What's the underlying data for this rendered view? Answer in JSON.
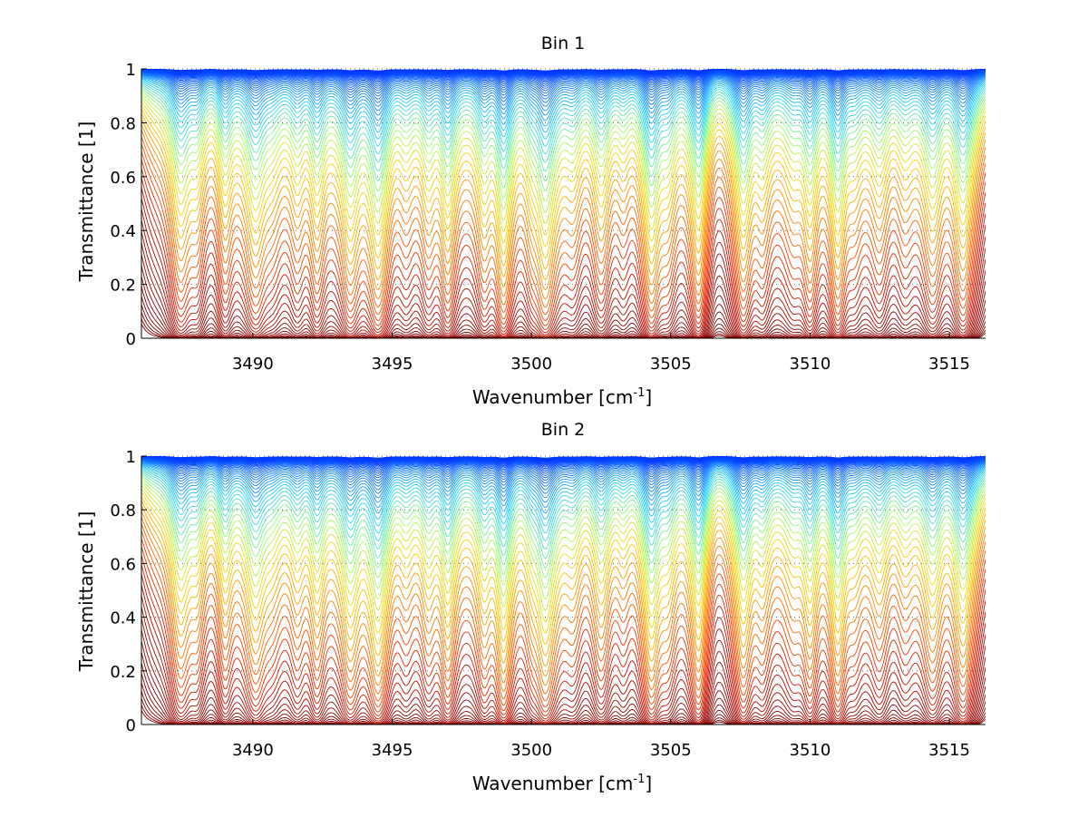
{
  "figure": {
    "background": "#ffffff"
  },
  "colormap": [
    "#800000",
    "#cc1100",
    "#ff4a00",
    "#ff8c00",
    "#ffd000",
    "#a0ff60",
    "#20d0ff",
    "#0030ff"
  ],
  "chart_data": [
    {
      "type": "line",
      "title": "Bin 1",
      "xlabel_main": "Wavenumber [cm",
      "xlabel_sup": "-1",
      "xlabel_end": "]",
      "ylabel": "Transmittance [1]",
      "xlim": [
        3486,
        3516.3
      ],
      "ylim": [
        0,
        1
      ],
      "xticks": [
        3490,
        3495,
        3500,
        3505,
        3510,
        3515
      ],
      "yticks": [
        0,
        0.2,
        0.4,
        0.6,
        0.8,
        1
      ],
      "grid": "dotted at y ticks",
      "legend": "none",
      "curve_count": 70,
      "colormap": "jet-like: dark red at 0 transmittance, orange mid, yellow/green/blue near 1",
      "absorption_lines": [
        {
          "x": 3487.4,
          "depth": 0.85
        },
        {
          "x": 3488.0,
          "depth": 0.55
        },
        {
          "x": 3489.0,
          "depth": 0.7
        },
        {
          "x": 3490.1,
          "depth": 0.8
        },
        {
          "x": 3490.7,
          "depth": 0.5
        },
        {
          "x": 3491.6,
          "depth": 0.6
        },
        {
          "x": 3492.3,
          "depth": 0.75
        },
        {
          "x": 3493.5,
          "depth": 0.85
        },
        {
          "x": 3494.5,
          "depth": 0.95
        },
        {
          "x": 3495.5,
          "depth": 0.55
        },
        {
          "x": 3496.3,
          "depth": 0.6
        },
        {
          "x": 3497.0,
          "depth": 0.8
        },
        {
          "x": 3498.3,
          "depth": 0.7
        },
        {
          "x": 3499.0,
          "depth": 0.95
        },
        {
          "x": 3500.0,
          "depth": 0.5
        },
        {
          "x": 3500.5,
          "depth": 0.95
        },
        {
          "x": 3501.5,
          "depth": 0.55
        },
        {
          "x": 3502.5,
          "depth": 0.7
        },
        {
          "x": 3503.3,
          "depth": 0.5
        },
        {
          "x": 3504.3,
          "depth": 0.9
        },
        {
          "x": 3504.9,
          "depth": 0.6
        },
        {
          "x": 3506.0,
          "depth": 0.9
        },
        {
          "x": 3507.6,
          "depth": 0.85
        },
        {
          "x": 3508.3,
          "depth": 0.6
        },
        {
          "x": 3509.4,
          "depth": 0.55
        },
        {
          "x": 3510.0,
          "depth": 0.8
        },
        {
          "x": 3511.0,
          "depth": 0.9
        },
        {
          "x": 3511.6,
          "depth": 0.5
        },
        {
          "x": 3512.5,
          "depth": 0.6
        },
        {
          "x": 3513.4,
          "depth": 0.55
        },
        {
          "x": 3514.4,
          "depth": 0.8
        },
        {
          "x": 3515.5,
          "depth": 0.85
        }
      ]
    },
    {
      "type": "line",
      "title": "Bin 2",
      "xlabel_main": "Wavenumber [cm",
      "xlabel_sup": "-1",
      "xlabel_end": "]",
      "ylabel": "Transmittance [1]",
      "xlim": [
        3486,
        3516.3
      ],
      "ylim": [
        0,
        1
      ],
      "xticks": [
        3490,
        3495,
        3500,
        3505,
        3510,
        3515
      ],
      "yticks": [
        0,
        0.2,
        0.4,
        0.6,
        0.8,
        1
      ],
      "grid": "dotted at y ticks",
      "legend": "none",
      "curve_count": 70,
      "colormap": "jet-like: dark red at 0 transmittance, orange mid, yellow/green/blue near 1",
      "absorption_lines": [
        {
          "x": 3487.4,
          "depth": 0.85
        },
        {
          "x": 3488.0,
          "depth": 0.55
        },
        {
          "x": 3489.0,
          "depth": 0.7
        },
        {
          "x": 3490.1,
          "depth": 0.8
        },
        {
          "x": 3490.7,
          "depth": 0.5
        },
        {
          "x": 3491.6,
          "depth": 0.6
        },
        {
          "x": 3492.3,
          "depth": 0.75
        },
        {
          "x": 3493.5,
          "depth": 0.85
        },
        {
          "x": 3494.5,
          "depth": 0.95
        },
        {
          "x": 3495.5,
          "depth": 0.55
        },
        {
          "x": 3496.3,
          "depth": 0.6
        },
        {
          "x": 3497.0,
          "depth": 0.8
        },
        {
          "x": 3498.3,
          "depth": 0.7
        },
        {
          "x": 3499.0,
          "depth": 0.95
        },
        {
          "x": 3500.0,
          "depth": 0.5
        },
        {
          "x": 3500.5,
          "depth": 0.95
        },
        {
          "x": 3501.5,
          "depth": 0.55
        },
        {
          "x": 3502.5,
          "depth": 0.7
        },
        {
          "x": 3503.3,
          "depth": 0.5
        },
        {
          "x": 3504.3,
          "depth": 0.9
        },
        {
          "x": 3504.9,
          "depth": 0.6
        },
        {
          "x": 3506.0,
          "depth": 0.9
        },
        {
          "x": 3507.6,
          "depth": 0.85
        },
        {
          "x": 3508.3,
          "depth": 0.6
        },
        {
          "x": 3509.4,
          "depth": 0.55
        },
        {
          "x": 3510.0,
          "depth": 0.8
        },
        {
          "x": 3511.0,
          "depth": 0.9
        },
        {
          "x": 3511.6,
          "depth": 0.5
        },
        {
          "x": 3512.5,
          "depth": 0.6
        },
        {
          "x": 3513.4,
          "depth": 0.55
        },
        {
          "x": 3514.4,
          "depth": 0.8
        },
        {
          "x": 3515.5,
          "depth": 0.85
        }
      ]
    }
  ]
}
